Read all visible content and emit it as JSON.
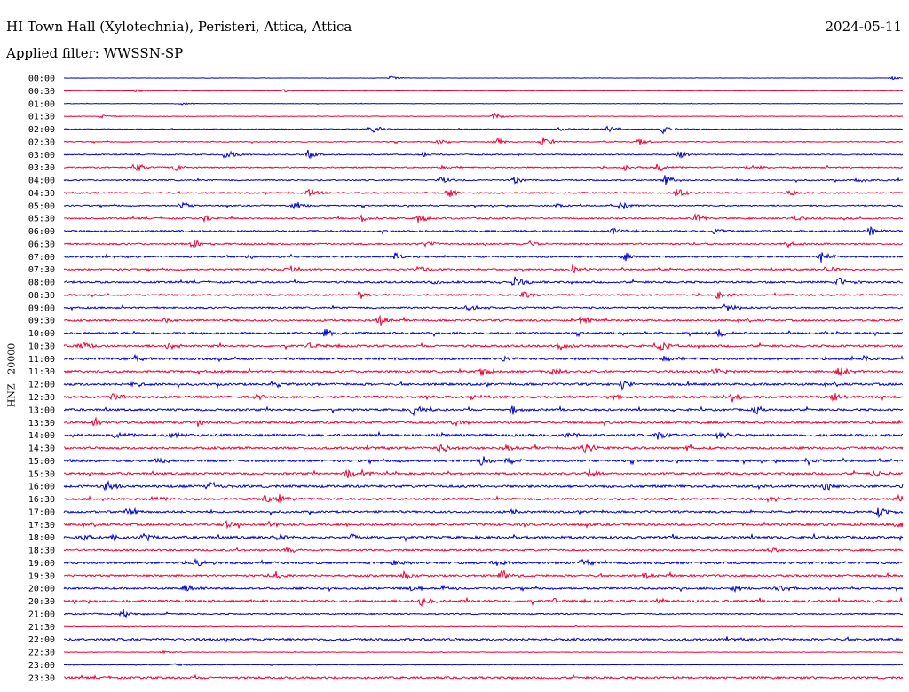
{
  "header": {
    "station": "HI Town Hall (Xylotechnia), Peristeri, Attica, Attica",
    "date": "2024-05-11",
    "filter": "Applied filter: WWSSN-SP"
  },
  "chart_data": {
    "type": "line",
    "title": "HI Town Hall (Xylotechnia), Peristeri, Attica, Attica",
    "ylabel": "HNZ - 20000",
    "series_colors": [
      "#0000cc",
      "#ee0033"
    ],
    "rows": [
      {
        "label": "00:00",
        "bursts": [
          [
            440,
            2
          ],
          [
            1005,
            2
          ]
        ],
        "noise": 0.2
      },
      {
        "label": "00:30",
        "bursts": [
          [
            155,
            1.5
          ],
          [
            320,
            2
          ]
        ],
        "noise": 0.2
      },
      {
        "label": "01:00",
        "bursts": [
          [
            205,
            1.5
          ]
        ],
        "noise": 0.2
      },
      {
        "label": "01:30",
        "bursts": [
          [
            115,
            1.5
          ],
          [
            556,
            5
          ]
        ],
        "noise": 0.3
      },
      {
        "label": "02:00",
        "bursts": [
          [
            418,
            6
          ],
          [
            630,
            3
          ],
          [
            685,
            4
          ],
          [
            747,
            5
          ]
        ],
        "noise": 0.4
      },
      {
        "label": "02:30",
        "bursts": [
          [
            495,
            3
          ],
          [
            560,
            4
          ],
          [
            612,
            6
          ],
          [
            720,
            5
          ]
        ],
        "noise": 0.5
      },
      {
        "label": "03:00",
        "bursts": [
          [
            255,
            6
          ],
          [
            347,
            5
          ],
          [
            477,
            3
          ],
          [
            765,
            5
          ]
        ],
        "noise": 0.6
      },
      {
        "label": "03:30",
        "bursts": [
          [
            153,
            6
          ],
          [
            197,
            4
          ],
          [
            500,
            3
          ],
          [
            705,
            4
          ],
          [
            742,
            5
          ],
          [
            845,
            4
          ]
        ],
        "noise": 0.7
      },
      {
        "label": "04:00",
        "bursts": [
          [
            497,
            5
          ],
          [
            580,
            5
          ],
          [
            750,
            6
          ],
          [
            965,
            3
          ]
        ],
        "noise": 0.7
      },
      {
        "label": "04:30",
        "bursts": [
          [
            348,
            5
          ],
          [
            505,
            6
          ],
          [
            762,
            6
          ],
          [
            890,
            4
          ]
        ],
        "noise": 0.8
      },
      {
        "label": "05:00",
        "bursts": [
          [
            205,
            4
          ],
          [
            332,
            6
          ],
          [
            628,
            3
          ],
          [
            700,
            6
          ]
        ],
        "noise": 0.7
      },
      {
        "label": "05:30",
        "bursts": [
          [
            232,
            4
          ],
          [
            408,
            4
          ],
          [
            472,
            5
          ],
          [
            785,
            6
          ],
          [
            895,
            4
          ]
        ],
        "noise": 0.8
      },
      {
        "label": "06:00",
        "bursts": [
          [
            690,
            5
          ],
          [
            805,
            4
          ],
          [
            980,
            6
          ]
        ],
        "noise": 1.0
      },
      {
        "label": "06:30",
        "bursts": [
          [
            218,
            5
          ],
          [
            480,
            3
          ],
          [
            598,
            4
          ],
          [
            885,
            4
          ]
        ],
        "noise": 0.9
      },
      {
        "label": "07:00",
        "bursts": [
          [
            280,
            3
          ],
          [
            445,
            4
          ],
          [
            705,
            5
          ],
          [
            925,
            6
          ]
        ],
        "noise": 0.9
      },
      {
        "label": "07:30",
        "bursts": [
          [
            325,
            5
          ],
          [
            472,
            4
          ],
          [
            645,
            6
          ],
          [
            932,
            5
          ]
        ],
        "noise": 0.9
      },
      {
        "label": "08:00",
        "bursts": [
          [
            488,
            5
          ],
          [
            580,
            7
          ],
          [
            945,
            6
          ]
        ],
        "noise": 1.0
      },
      {
        "label": "08:30",
        "bursts": [
          [
            405,
            5
          ],
          [
            590,
            5
          ],
          [
            810,
            6
          ]
        ],
        "noise": 0.9
      },
      {
        "label": "09:00",
        "bursts": [
          [
            528,
            6
          ],
          [
            818,
            6
          ]
        ],
        "noise": 0.9
      },
      {
        "label": "09:30",
        "bursts": [
          [
            185,
            3
          ],
          [
            428,
            6
          ],
          [
            655,
            5
          ]
        ],
        "noise": 1.0
      },
      {
        "label": "10:00",
        "bursts": [
          [
            365,
            6
          ],
          [
            810,
            5
          ]
        ],
        "noise": 1.1
      },
      {
        "label": "10:30",
        "bursts": [
          [
            92,
            5
          ],
          [
            190,
            5
          ],
          [
            350,
            4
          ],
          [
            632,
            5
          ],
          [
            745,
            6
          ]
        ],
        "noise": 1.1
      },
      {
        "label": "11:00",
        "bursts": [
          [
            152,
            4
          ],
          [
            568,
            5
          ],
          [
            750,
            5
          ],
          [
            975,
            4
          ]
        ],
        "noise": 1.2
      },
      {
        "label": "11:30",
        "bursts": [
          [
            542,
            5
          ],
          [
            622,
            4
          ],
          [
            805,
            5
          ],
          [
            945,
            6
          ]
        ],
        "noise": 1.1
      },
      {
        "label": "12:00",
        "bursts": [
          [
            147,
            5
          ],
          [
            308,
            4
          ],
          [
            700,
            6
          ]
        ],
        "noise": 1.2
      },
      {
        "label": "12:30",
        "bursts": [
          [
            128,
            5
          ],
          [
            290,
            4
          ],
          [
            530,
            4
          ],
          [
            688,
            4
          ],
          [
            825,
            5
          ],
          [
            940,
            7
          ]
        ],
        "noise": 1.3
      },
      {
        "label": "13:00",
        "bursts": [
          [
            466,
            6
          ],
          [
            578,
            5
          ],
          [
            852,
            4
          ]
        ],
        "noise": 1.1
      },
      {
        "label": "13:30",
        "bursts": [
          [
            107,
            5
          ],
          [
            222,
            5
          ],
          [
            512,
            6
          ]
        ],
        "noise": 1.1
      },
      {
        "label": "14:00",
        "bursts": [
          [
            132,
            5
          ],
          [
            195,
            4
          ],
          [
            638,
            5
          ],
          [
            742,
            6
          ],
          [
            810,
            5
          ]
        ],
        "noise": 1.3
      },
      {
        "label": "14:30",
        "bursts": [
          [
            497,
            6
          ],
          [
            570,
            4
          ],
          [
            658,
            6
          ],
          [
            775,
            4
          ]
        ],
        "noise": 1.2
      },
      {
        "label": "15:00",
        "bursts": [
          [
            82,
            4
          ],
          [
            178,
            4
          ],
          [
            542,
            6
          ],
          [
            572,
            4
          ],
          [
            910,
            5
          ]
        ],
        "noise": 1.2
      },
      {
        "label": "15:30",
        "bursts": [
          [
            392,
            6
          ],
          [
            407,
            5
          ],
          [
            663,
            5
          ],
          [
            985,
            4
          ]
        ],
        "noise": 1.1
      },
      {
        "label": "16:00",
        "bursts": [
          [
            120,
            7
          ],
          [
            236,
            6
          ],
          [
            930,
            6
          ]
        ],
        "noise": 1.3
      },
      {
        "label": "16:30",
        "bursts": [
          [
            172,
            4
          ],
          [
            300,
            5
          ],
          [
            315,
            4
          ],
          [
            868,
            4
          ],
          [
            1012,
            5
          ]
        ],
        "noise": 1.2
      },
      {
        "label": "17:00",
        "bursts": [
          [
            143,
            6
          ],
          [
            578,
            4
          ],
          [
            990,
            7
          ]
        ],
        "noise": 1.1
      },
      {
        "label": "17:30",
        "bursts": [
          [
            255,
            4
          ],
          [
            302,
            4
          ],
          [
            1012,
            5
          ]
        ],
        "noise": 1.2
      },
      {
        "label": "18:00",
        "bursts": [
          [
            92,
            6
          ],
          [
            128,
            4
          ],
          [
            163,
            5
          ],
          [
            312,
            5
          ],
          [
            396,
            4
          ]
        ],
        "noise": 1.3
      },
      {
        "label": "18:30",
        "bursts": [
          [
            323,
            4
          ],
          [
            868,
            3
          ]
        ],
        "noise": 1.0
      },
      {
        "label": "19:00",
        "bursts": [
          [
            220,
            5
          ],
          [
            442,
            5
          ],
          [
            558,
            5
          ],
          [
            655,
            4
          ]
        ],
        "noise": 1.2
      },
      {
        "label": "19:30",
        "bursts": [
          [
            310,
            5
          ],
          [
            455,
            5
          ],
          [
            565,
            6
          ],
          [
            727,
            4
          ]
        ],
        "noise": 1.1
      },
      {
        "label": "20:00",
        "bursts": [
          [
            210,
            5
          ],
          [
            465,
            4
          ],
          [
            500,
            6
          ],
          [
            828,
            5
          ],
          [
            877,
            5
          ]
        ],
        "noise": 1.0
      },
      {
        "label": "20:30",
        "bursts": [
          [
            475,
            6
          ],
          [
            625,
            3
          ],
          [
            740,
            3
          ]
        ],
        "noise": 1.3
      },
      {
        "label": "21:00",
        "bursts": [
          [
            140,
            6
          ]
        ],
        "noise": 0.7
      },
      {
        "label": "21:30",
        "bursts": [],
        "noise": 0.4
      },
      {
        "label": "22:00",
        "bursts": [],
        "noise": 1.2
      },
      {
        "label": "22:30",
        "bursts": [
          [
            185,
            1.5
          ]
        ],
        "noise": 0.3
      },
      {
        "label": "23:00",
        "bursts": [
          [
            198,
            2
          ]
        ],
        "noise": 0.3
      },
      {
        "label": "23:30",
        "bursts": [],
        "noise": 1.1
      }
    ]
  }
}
